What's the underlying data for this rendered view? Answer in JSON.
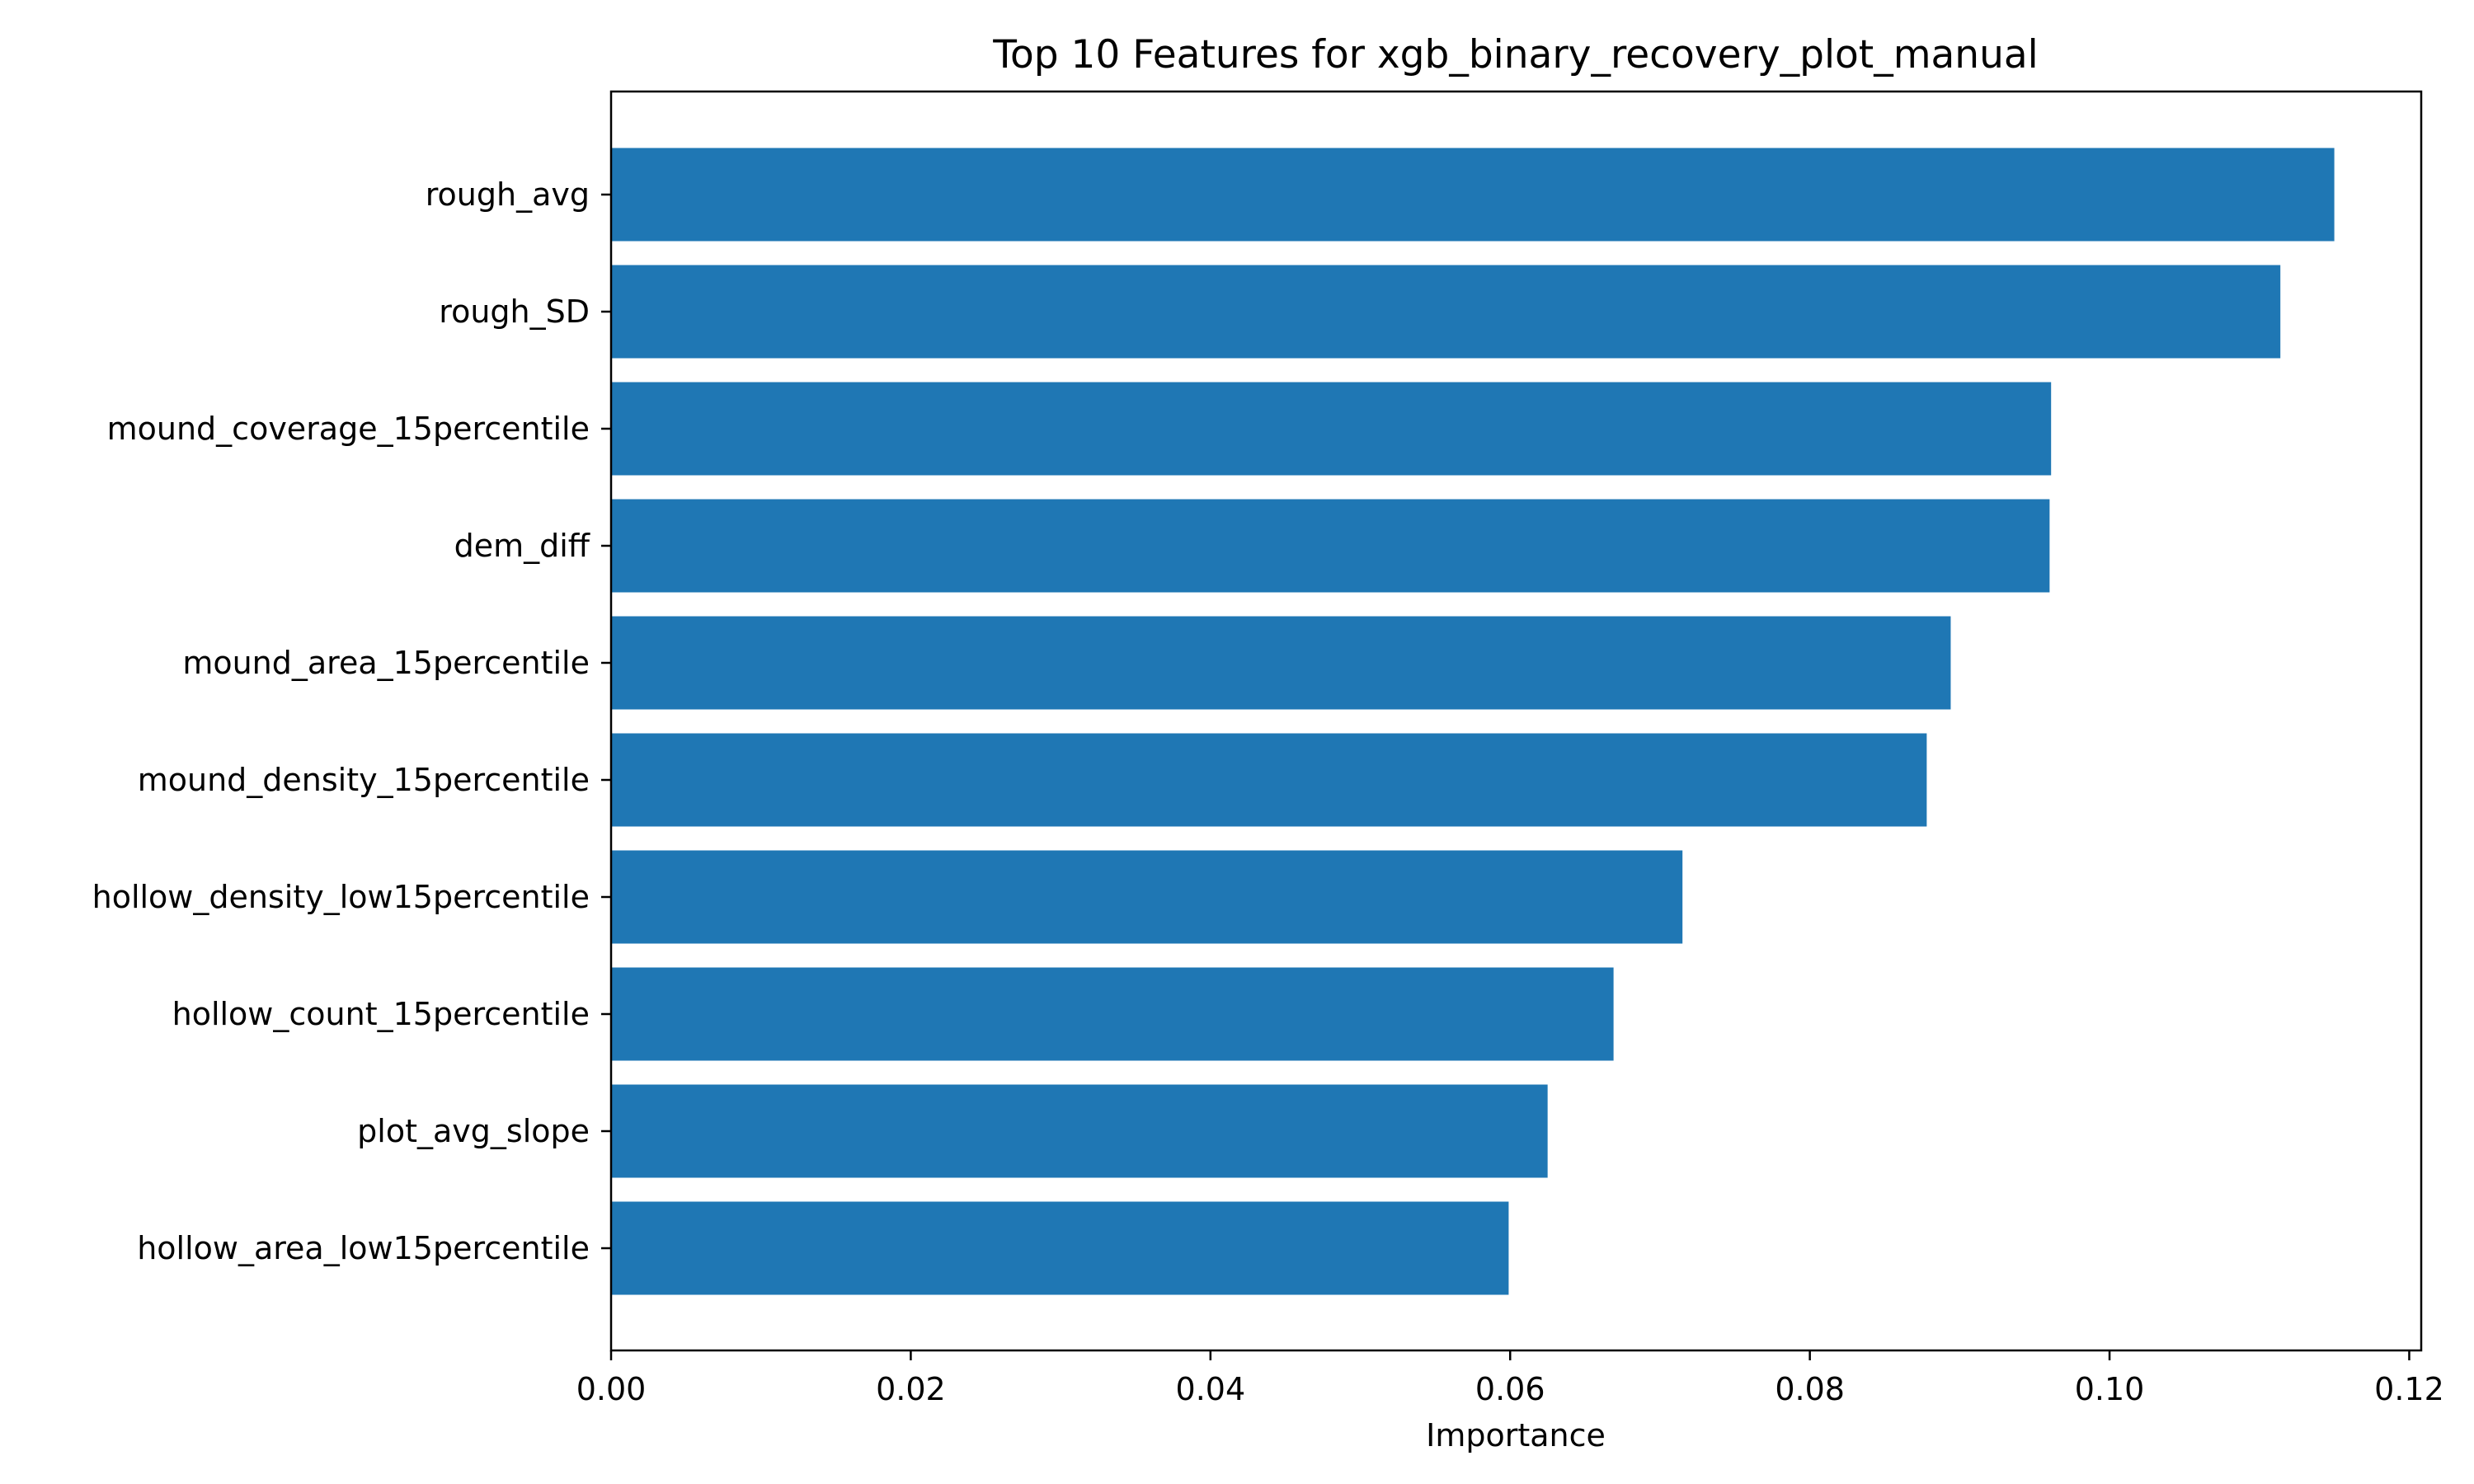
{
  "chart_data": {
    "type": "bar",
    "orientation": "horizontal",
    "title": "Top 10 Features for xgb_binary_recovery_plot_manual",
    "xlabel": "Importance",
    "ylabel": "",
    "categories": [
      "rough_avg",
      "rough_SD",
      "mound_coverage_15percentile",
      "dem_diff",
      "mound_area_15percentile",
      "mound_density_15percentile",
      "hollow_density_low15percentile",
      "hollow_count_15percentile",
      "plot_avg_slope",
      "hollow_area_low15percentile"
    ],
    "values": [
      0.115,
      0.1114,
      0.0961,
      0.096,
      0.0894,
      0.0878,
      0.0715,
      0.0669,
      0.0625,
      0.0599
    ],
    "xlim": [
      0,
      0.1208
    ],
    "xticks": [
      0.0,
      0.02,
      0.04,
      0.06,
      0.08,
      0.1,
      0.12
    ],
    "xtick_labels": [
      "0.00",
      "0.02",
      "0.04",
      "0.06",
      "0.08",
      "0.10",
      "0.12"
    ],
    "bar_color": "#1f77b4",
    "grid": false,
    "legend": "none"
  }
}
